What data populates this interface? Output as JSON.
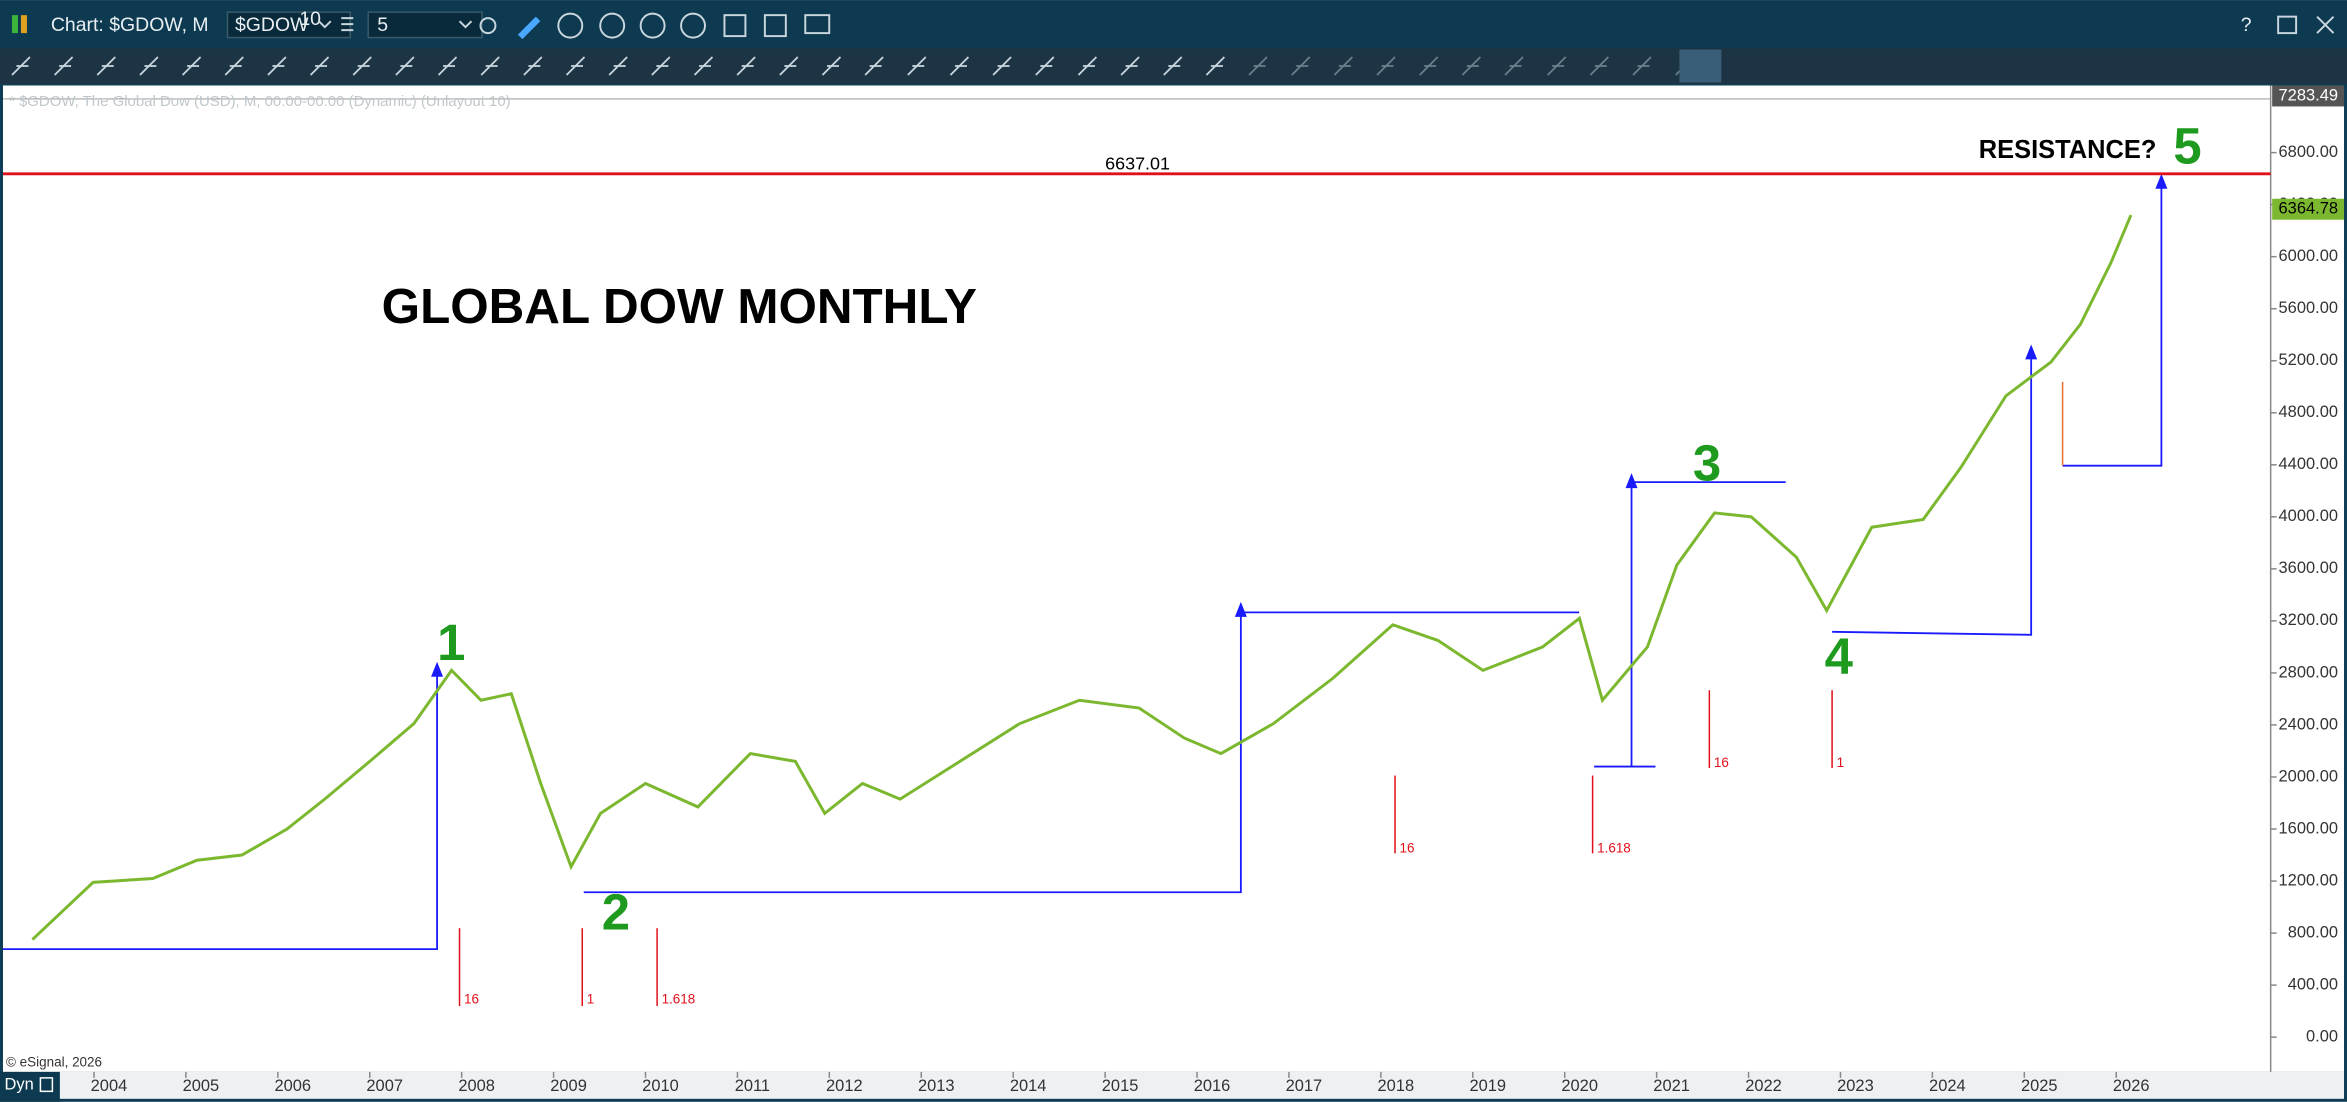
{
  "toolbar": {
    "chart_title": "Chart: $GDOW, M",
    "symbol": "$GDOW",
    "symbol_sup": "10",
    "interval": "5",
    "dyn": "Dyn"
  },
  "chart_data": {
    "type": "line",
    "title": "GLOBAL DOW MONTHLY",
    "legend_text": "* $GDOW, The Global Dow (USD), M, 00:00-00:00 (Dynamic) (Unlayout 10)",
    "x": [
      2003.33,
      2003.99,
      2004.64,
      2005.12,
      2005.61,
      2006.1,
      2006.51,
      2007.0,
      2007.48,
      2007.89,
      2008.21,
      2008.54,
      2008.86,
      2009.19,
      2009.51,
      2010.0,
      2010.57,
      2011.14,
      2011.63,
      2011.95,
      2012.36,
      2012.77,
      2013.42,
      2014.07,
      2014.72,
      2015.37,
      2015.86,
      2016.26,
      2016.83,
      2017.48,
      2018.13,
      2018.62,
      2019.11,
      2019.76,
      2020.16,
      2020.41,
      2020.9,
      2021.22,
      2021.63,
      2022.03,
      2022.52,
      2022.85,
      2023.34,
      2023.9,
      2024.31,
      2024.8,
      2025.29,
      2025.61,
      2025.94,
      2026.16
    ],
    "series": [
      {
        "color": "#7cb82f",
        "values": [
          750,
          1190,
          1220,
          1360,
          1400,
          1600,
          1830,
          2120,
          2410,
          2820,
          2590,
          2640,
          1950,
          1310,
          1720,
          1950,
          1770,
          2180,
          2120,
          1720,
          1950,
          1830,
          2120,
          2410,
          2590,
          2530,
          2300,
          2180,
          2410,
          2760,
          3170,
          3050,
          2820,
          3000,
          3220,
          2590,
          3000,
          3630,
          4030,
          4000,
          3690,
          3280,
          3920,
          3980,
          4380,
          4930,
          5190,
          5480,
          5950,
          6320
        ]
      }
    ],
    "xlim": [
      2003.01,
      2027.68
    ],
    "xticks": [
      2004,
      2005,
      2006,
      2007,
      2008,
      2009,
      2010,
      2011,
      2012,
      2013,
      2014,
      2015,
      2016,
      2017,
      2018,
      2019,
      2020,
      2021,
      2022,
      2023,
      2024,
      2025,
      2026
    ],
    "ylim": [
      -267,
      7316
    ],
    "yticks": [
      {
        "value": 0,
        "label": "0.00"
      },
      {
        "value": 400,
        "label": "400.00"
      },
      {
        "value": 800,
        "label": "800.00"
      },
      {
        "value": 1200,
        "label": "1200.00"
      },
      {
        "value": 1600,
        "label": "1600.00"
      },
      {
        "value": 2000,
        "label": "2000.00"
      },
      {
        "value": 2400,
        "label": "2400.00"
      },
      {
        "value": 2800,
        "label": "2800.00"
      },
      {
        "value": 3200,
        "label": "3200.00"
      },
      {
        "value": 3600,
        "label": "3600.00"
      },
      {
        "value": 4000,
        "label": "4000.00"
      },
      {
        "value": 4400,
        "label": "4400.00"
      },
      {
        "value": 4800,
        "label": "4800.00"
      },
      {
        "value": 5200,
        "label": "5200.00"
      },
      {
        "value": 5600,
        "label": "5600.00"
      },
      {
        "value": 6000,
        "label": "6000.00"
      },
      {
        "value": 6400,
        "label": "6400.00"
      },
      {
        "value": 6800,
        "label": "6800.00"
      }
    ],
    "top_label": 7283.49,
    "last_price": 6364.78,
    "resistance": 6637.01,
    "resistance_color": "#e0101a",
    "resistance_text": "RESISTANCE?",
    "wave_labels": [
      "1",
      "2",
      "3",
      "4",
      "5"
    ],
    "fib_labels": [
      "16",
      "1",
      "1.618",
      "16",
      "1.618",
      "16",
      "1"
    ],
    "copyright": "© eSignal, 2026"
  }
}
